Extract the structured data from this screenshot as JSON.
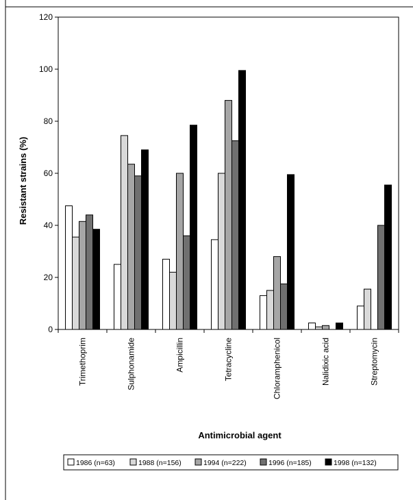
{
  "chart_data": {
    "type": "bar",
    "title": "",
    "xlabel": "Antimicrobial agent",
    "ylabel": "Resistant strains (%)",
    "ylim": [
      0,
      120
    ],
    "yticks": [
      0,
      20,
      40,
      60,
      80,
      100,
      120
    ],
    "grid": false,
    "legend_position": "bottom",
    "categories": [
      "Trimethoprim",
      "Sulphonamide",
      "Ampicillin",
      "Tetracycline",
      "Chloramphenicol",
      "Nalidixic acid",
      "Streptomycin"
    ],
    "series": [
      {
        "name": "1986 (n=63)",
        "color": "#ffffff",
        "values": [
          47.5,
          25,
          27,
          34.5,
          13,
          2.5,
          9
        ]
      },
      {
        "name": "1988 (n=156)",
        "color": "#d9d9d9",
        "values": [
          35.5,
          74.5,
          22,
          60,
          15,
          1,
          15.5
        ]
      },
      {
        "name": "1994 (n=222)",
        "color": "#a6a6a6",
        "values": [
          41.5,
          63.5,
          60,
          88,
          28,
          1.5,
          0
        ]
      },
      {
        "name": "1996 (n=185)",
        "color": "#707070",
        "values": [
          44,
          59,
          36,
          72.5,
          17.5,
          0,
          40
        ]
      },
      {
        "name": "1998 (n=132)",
        "color": "#000000",
        "values": [
          38.5,
          69,
          78.5,
          99.5,
          59.5,
          2.5,
          55.5
        ]
      }
    ]
  }
}
